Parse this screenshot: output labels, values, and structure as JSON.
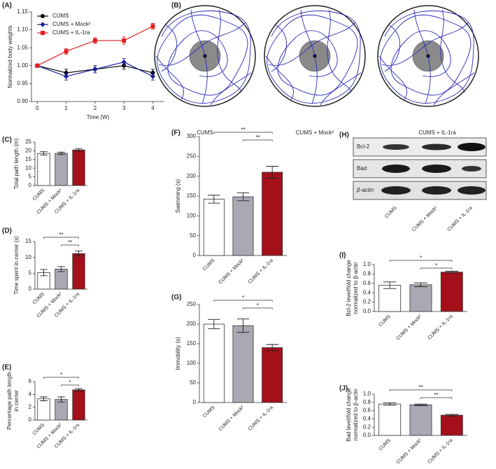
{
  "panel_b": {
    "label": "(B)",
    "labels": [
      "CUMS",
      "CUMS + Mock²",
      "CUMS + IL-1ra"
    ]
  },
  "panel_h": {
    "label": "(H)",
    "rows": [
      "Bcl-2",
      "Bad",
      "β-actin"
    ],
    "categories": [
      "CUMS",
      "CUMS + Mock²",
      "CUMS + IL-1ra"
    ]
  },
  "chart_data": [
    {
      "type": "line",
      "label": "(A)",
      "xlabel": "Time (W)",
      "ylabel": "Normalized body weights",
      "x": [
        0,
        1,
        2,
        3,
        4
      ],
      "xlim": [
        -0.2,
        4.4
      ],
      "xticks": [
        0,
        1,
        2,
        3,
        4
      ],
      "ylim": [
        0.9,
        1.15
      ],
      "yticks": [
        {
          "value": 0.9,
          "label": "0.90"
        },
        {
          "value": 0.95,
          "label": "0.95"
        },
        {
          "value": 1.0,
          "label": "1.00"
        },
        {
          "value": 1.05,
          "label": "1.05"
        },
        {
          "value": 1.1,
          "label": "1.10"
        },
        {
          "value": 1.15,
          "label": "1.15"
        }
      ],
      "legend": "upper left",
      "series": [
        {
          "name": "CUMS",
          "color": "#000000",
          "marker": "circle",
          "values": [
            1.0,
            0.98,
            0.99,
            1.0,
            0.98
          ],
          "errors": [
            0.003,
            0.01,
            0.01,
            0.01,
            0.01
          ]
        },
        {
          "name": "CUMS + Mock²",
          "color": "#1f1fa0",
          "marker": "diamond",
          "values": [
            1.0,
            0.97,
            0.99,
            1.01,
            0.97
          ],
          "errors": [
            0.003,
            0.01,
            0.01,
            0.01,
            0.01
          ]
        },
        {
          "name": "CUMS + IL-1ra",
          "color": "#e02020",
          "marker": "square",
          "values": [
            1.0,
            1.04,
            1.07,
            1.07,
            1.11
          ],
          "errors": [
            0.003,
            0.008,
            0.008,
            0.01,
            0.008
          ]
        }
      ]
    },
    {
      "type": "bar",
      "label": "(C)",
      "ylabel": "Total path length (m)",
      "categories": [
        "CUMS",
        "CUMS + Mock²",
        "CUMS + IL-1ra"
      ],
      "values": [
        18.5,
        18.5,
        20.5
      ],
      "errors": [
        1.0,
        0.7,
        0.8
      ],
      "colors": [
        "#ffffff",
        "#a9a9b3",
        "#a3101a"
      ],
      "ylim": [
        0,
        25
      ],
      "yticks": [
        0,
        5,
        10,
        15,
        20,
        25
      ],
      "annotations": []
    },
    {
      "type": "bar",
      "label": "(D)",
      "ylabel": "Time spent in center (s)",
      "categories": [
        "CUMS",
        "CUMS + Mock²",
        "CUMS + IL-1ra"
      ],
      "values": [
        5.2,
        6.3,
        11.2
      ],
      "errors": [
        1.0,
        0.8,
        0.8
      ],
      "colors": [
        "#ffffff",
        "#a9a9b3",
        "#a3101a"
      ],
      "ylim": [
        0,
        15
      ],
      "yticks": [
        0,
        5,
        10,
        15
      ],
      "annotations": [
        {
          "text": "**",
          "between": [
            "CUMS",
            "CUMS + IL-1ra"
          ]
        },
        {
          "text": "**",
          "between": [
            "CUMS + Mock²",
            "CUMS + IL-1ra"
          ]
        }
      ]
    },
    {
      "type": "bar",
      "label": "(E)",
      "ylabel": [
        "Percentage path length",
        "in center"
      ],
      "categories": [
        "CUMS",
        "CUMS + Mock²",
        "CUMS + IL-1ra"
      ],
      "values": [
        3.3,
        3.2,
        4.7
      ],
      "errors": [
        0.3,
        0.4,
        0.2
      ],
      "colors": [
        "#ffffff",
        "#a9a9b3",
        "#a3101a"
      ],
      "ylim": [
        0,
        6
      ],
      "yticks": [
        0,
        2,
        4,
        6
      ],
      "annotations": [
        {
          "text": "*",
          "between": [
            "CUMS",
            "CUMS + IL-1ra"
          ]
        },
        {
          "text": "*",
          "between": [
            "CUMS + Mock²",
            "CUMS + IL-1ra"
          ]
        }
      ]
    },
    {
      "type": "bar",
      "label": "(F)",
      "ylabel": "Swimming (s)",
      "categories": [
        "CUMS",
        "CUMS + Mock²",
        "CUMS + IL-1ra"
      ],
      "values": [
        142,
        148,
        210
      ],
      "errors": [
        10,
        10,
        15
      ],
      "colors": [
        "#ffffff",
        "#a9a9b3",
        "#a3101a"
      ],
      "ylim": [
        0,
        300
      ],
      "yticks": [
        0,
        50,
        100,
        150,
        200,
        250,
        300
      ],
      "annotations": [
        {
          "text": "**",
          "between": [
            "CUMS",
            "CUMS + IL-1ra"
          ]
        },
        {
          "text": "**",
          "between": [
            "CUMS + Mock²",
            "CUMS + IL-1ra"
          ]
        }
      ]
    },
    {
      "type": "bar",
      "label": "(G)",
      "ylabel": "Immobility (s)",
      "categories": [
        "CUMS",
        "CUMS + Mock²",
        "CUMS + IL-1ra"
      ],
      "values": [
        200,
        196,
        140
      ],
      "errors": [
        12,
        17,
        8
      ],
      "colors": [
        "#ffffff",
        "#a9a9b3",
        "#a3101a"
      ],
      "ylim": [
        0,
        250
      ],
      "yticks": [
        0,
        50,
        100,
        150,
        200,
        250
      ],
      "annotations": [
        {
          "text": "*",
          "between": [
            "CUMS",
            "CUMS + IL-1ra"
          ]
        },
        {
          "text": "*",
          "between": [
            "CUMS + Mock²",
            "CUMS + IL-1ra"
          ]
        }
      ]
    },
    {
      "type": "bar",
      "label": "(I)",
      "ylabel": [
        "Bcl-2 level/fold change",
        "normalized to β-actin"
      ],
      "categories": [
        "CUMS",
        "CUMS + Mock²",
        "CUMS + IL-1ra"
      ],
      "values": [
        0.56,
        0.57,
        0.84
      ],
      "errors": [
        0.07,
        0.04,
        0.02
      ],
      "colors": [
        "#ffffff",
        "#a9a9b3",
        "#a3101a"
      ],
      "ylim": [
        0,
        1.0
      ],
      "yticks": [
        {
          "value": 0,
          "label": "0.0"
        },
        0.2,
        0.4,
        0.6,
        0.8,
        {
          "value": 1.0,
          "label": "1.0"
        }
      ],
      "annotations": [
        {
          "text": "*",
          "between": [
            "CUMS",
            "CUMS + IL-1ra"
          ]
        },
        {
          "text": "*",
          "between": [
            "CUMS + Mock²",
            "CUMS + IL-1ra"
          ]
        }
      ]
    },
    {
      "type": "bar",
      "label": "(J)",
      "ylabel": [
        "Bad level/fold change",
        "normalized to β-actin"
      ],
      "categories": [
        "CUMS",
        "CUMS + Mock²",
        "CUMS + IL-1ra"
      ],
      "values": [
        0.76,
        0.74,
        0.49
      ],
      "errors": [
        0.03,
        0.02,
        0.02
      ],
      "colors": [
        "#ffffff",
        "#a9a9b3",
        "#a3101a"
      ],
      "ylim": [
        0,
        1.0
      ],
      "yticks": [
        {
          "value": 0,
          "label": "0.0"
        },
        0.2,
        0.4,
        0.6,
        0.8,
        {
          "value": 1.0,
          "label": "1.0"
        }
      ],
      "annotations": [
        {
          "text": "**",
          "between": [
            "CUMS",
            "CUMS + IL-1ra"
          ]
        },
        {
          "text": "**",
          "between": [
            "CUMS + Mock²",
            "CUMS + IL-1ra"
          ]
        }
      ]
    }
  ]
}
